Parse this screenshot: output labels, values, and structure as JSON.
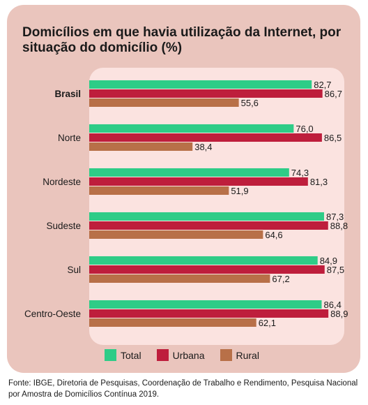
{
  "chart_data": {
    "type": "bar",
    "orientation": "horizontal",
    "title": "Domicílios em que havia utilização da Internet, por situação do domicílio (%)",
    "categories": [
      "Brasil",
      "Norte",
      "Nordeste",
      "Sudeste",
      "Sul",
      "Centro-Oeste"
    ],
    "category_labels": [
      "82,7",
      "86,7"
    ],
    "series": [
      {
        "name": "Total",
        "color": "#2ecc87",
        "values": [
          82.7,
          76.0,
          74.3,
          87.3,
          84.9,
          86.4
        ],
        "labels": [
          "82,7",
          "76,0",
          "74,3",
          "87,3",
          "84,9",
          "86,4"
        ]
      },
      {
        "name": "Urbana",
        "color": "#be1e3c",
        "values": [
          86.7,
          86.5,
          81.3,
          88.8,
          87.5,
          88.9
        ],
        "labels": [
          "86,7",
          "86,5",
          "81,3",
          "88,8",
          "87,5",
          "88,9"
        ]
      },
      {
        "name": "Rural",
        "color": "#b87048",
        "values": [
          55.6,
          38.4,
          51.9,
          64.6,
          67.2,
          62.1
        ],
        "labels": [
          "55,6",
          "38,4",
          "51,9",
          "64,6",
          "67,2",
          "62,1"
        ]
      }
    ],
    "xlim": [
      0,
      100
    ],
    "bold_categories": [
      "Brasil"
    ],
    "grid": false,
    "legend_position": "bottom"
  },
  "footer": "Fonte: IBGE, Diretoria de Pesquisas, Coordenação de Trabalho e Rendimento, Pesquisa Nacional por Amostra de Domicílios Contínua 2019."
}
